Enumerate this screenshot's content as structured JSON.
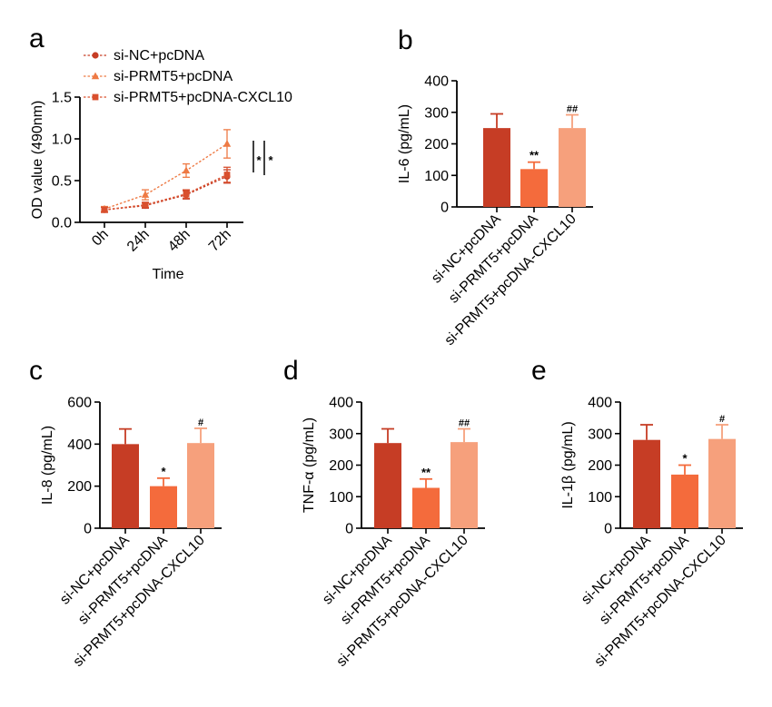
{
  "colors": {
    "si_nc": "#c63d25",
    "si_prmt5": "#f46b3c",
    "si_prmt5_cxcl10": "#f6a07c",
    "line_a": "#d9502e",
    "line_b": "#ee7a44",
    "axis": "#000000"
  },
  "groups": [
    "si-NC+pcDNA",
    "si-PRMT5+pcDNA",
    "si-PRMT5+pcDNA-CXCL10"
  ],
  "chart_data": [
    {
      "panel": "a",
      "type": "line",
      "xlabel": "Time",
      "ylabel": "OD value (490nm)",
      "categories": [
        "0h",
        "24h",
        "48h",
        "72h"
      ],
      "ylim": [
        0,
        1.5
      ],
      "yticks": [
        "0.0",
        "0.5",
        "1.0",
        "1.5"
      ],
      "legend_position": "top",
      "series": [
        {
          "name": "si-NC+pcDNA",
          "marker": "circle",
          "values": [
            0.15,
            0.2,
            0.33,
            0.55
          ],
          "errors": [
            0.03,
            0.03,
            0.05,
            0.08
          ]
        },
        {
          "name": "si-PRMT5+pcDNA",
          "marker": "triangle",
          "values": [
            0.16,
            0.33,
            0.62,
            0.94
          ],
          "errors": [
            0.03,
            0.06,
            0.08,
            0.17
          ]
        },
        {
          "name": "si-PRMT5+pcDNA-CXCL10",
          "marker": "square",
          "values": [
            0.15,
            0.21,
            0.34,
            0.57
          ],
          "errors": [
            0.03,
            0.03,
            0.05,
            0.09
          ]
        }
      ],
      "annotations": [
        "*",
        "*"
      ]
    },
    {
      "panel": "b",
      "type": "bar",
      "ylabel": "IL-6 (pg/mL)",
      "categories": [
        "si-NC+pcDNA",
        "si-PRMT5+pcDNA",
        "si-PRMT5+pcDNA-CXCL10"
      ],
      "values": [
        250,
        120,
        250
      ],
      "errors": [
        45,
        22,
        42
      ],
      "ylim": [
        0,
        400
      ],
      "yticks": [
        "0",
        "100",
        "200",
        "300",
        "400"
      ],
      "significance": [
        "",
        "**",
        "##"
      ]
    },
    {
      "panel": "c",
      "type": "bar",
      "ylabel": "IL-8 (pg/mL)",
      "categories": [
        "si-NC+pcDNA",
        "si-PRMT5+pcDNA",
        "si-PRMT5+pcDNA-CXCL10"
      ],
      "values": [
        400,
        200,
        405
      ],
      "errors": [
        72,
        38,
        70
      ],
      "ylim": [
        0,
        600
      ],
      "yticks": [
        "0",
        "200",
        "400",
        "600"
      ],
      "significance": [
        "",
        "*",
        "#"
      ]
    },
    {
      "panel": "d",
      "type": "bar",
      "ylabel": "TNF-α (pg/mL)",
      "categories": [
        "si-NC+pcDNA",
        "si-PRMT5+pcDNA",
        "si-PRMT5+pcDNA-CXCL10"
      ],
      "values": [
        270,
        128,
        273
      ],
      "errors": [
        45,
        28,
        42
      ],
      "ylim": [
        0,
        400
      ],
      "yticks": [
        "0",
        "100",
        "200",
        "300",
        "400"
      ],
      "significance": [
        "",
        "**",
        "##"
      ]
    },
    {
      "panel": "e",
      "type": "bar",
      "ylabel": "IL-1β (pg/mL)",
      "categories": [
        "si-NC+pcDNA",
        "si-PRMT5+pcDNA",
        "si-PRMT5+pcDNA-CXCL10"
      ],
      "values": [
        280,
        170,
        283
      ],
      "errors": [
        48,
        30,
        45
      ],
      "ylim": [
        0,
        400
      ],
      "yticks": [
        "0",
        "100",
        "200",
        "300",
        "400"
      ],
      "significance": [
        "",
        "*",
        "#"
      ]
    }
  ]
}
